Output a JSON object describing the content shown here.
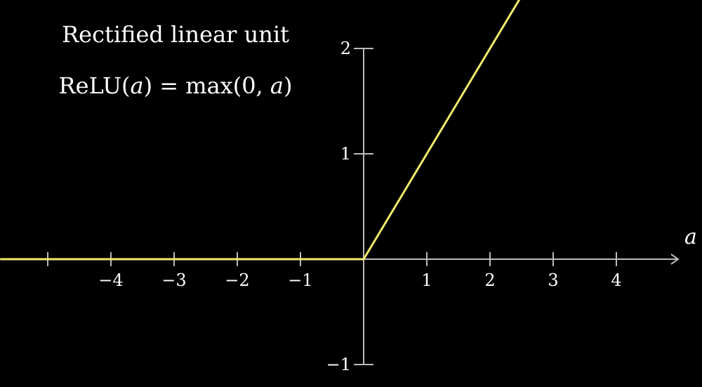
{
  "chart_data": {
    "type": "line",
    "title": "Rectified linear unit",
    "formula": {
      "fn": "ReLU",
      "open": "(",
      "var": "a",
      "close": ")",
      "eq": " = max(0, ",
      "var2": "a",
      "end": ")"
    },
    "xlabel": "a",
    "ylabel": "",
    "xlim": [
      -5.75,
      5
    ],
    "ylim": [
      -1,
      2.5
    ],
    "x_ticks": [
      -5,
      -4,
      -3,
      -2,
      -1,
      1,
      2,
      3,
      4
    ],
    "x_tick_labels": [
      {
        "value": -4,
        "label": "−4"
      },
      {
        "value": -3,
        "label": "−3"
      },
      {
        "value": -2,
        "label": "−2"
      },
      {
        "value": -1,
        "label": "−1"
      },
      {
        "value": 1,
        "label": "1"
      },
      {
        "value": 2,
        "label": "2"
      },
      {
        "value": 3,
        "label": "3"
      },
      {
        "value": 4,
        "label": "4"
      }
    ],
    "y_tick_labels": [
      {
        "value": 2,
        "label": "2"
      },
      {
        "value": 1,
        "label": "1"
      },
      {
        "value": -1,
        "label": "−1"
      }
    ],
    "series": [
      {
        "x": [
          -5.75,
          0,
          2.5
        ],
        "y": [
          0,
          0,
          2.5
        ]
      }
    ],
    "grid": false,
    "colors": {
      "background": "#000000",
      "axis": "#bbbbbb",
      "curve": "#f2ec6c",
      "text": "#ffffff"
    }
  }
}
